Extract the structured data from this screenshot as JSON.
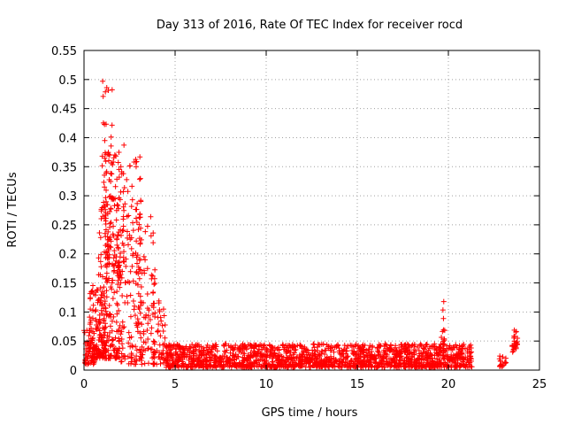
{
  "chart_data": {
    "type": "scatter",
    "title": "Day 313 of 2016, Rate Of TEC Index for receiver rocd",
    "xlabel": "GPS time / hours",
    "ylabel": "ROTI / TECUs",
    "xlim": [
      0,
      25
    ],
    "ylim": [
      0,
      0.55
    ],
    "xticks": [
      "0",
      "5",
      "10",
      "15",
      "20",
      "25"
    ],
    "yticks": [
      "0",
      "0.05",
      "0.1",
      "0.15",
      "0.2",
      "0.25",
      "0.3",
      "0.35",
      "0.4",
      "0.45",
      "0.5",
      "0.55"
    ],
    "xtick_values": [
      0,
      5,
      10,
      15,
      20,
      25
    ],
    "ytick_values": [
      0,
      0.05,
      0.1,
      0.15,
      0.2,
      0.25,
      0.3,
      0.35,
      0.4,
      0.45,
      0.5,
      0.55
    ],
    "grid": true,
    "marker": "+",
    "color": "#ff0000",
    "clusters": [
      {
        "x": [
          0.0,
          0.6
        ],
        "y": [
          0.01,
          0.07
        ],
        "n": 60
      },
      {
        "x": [
          0.3,
          1.2
        ],
        "y": [
          0.02,
          0.15
        ],
        "n": 120
      },
      {
        "x": [
          0.8,
          2.0
        ],
        "y": [
          0.02,
          0.3
        ],
        "n": 200
      },
      {
        "x": [
          1.0,
          1.6
        ],
        "y": [
          0.25,
          0.5
        ],
        "n": 40
      },
      {
        "x": [
          1.2,
          2.3
        ],
        "y": [
          0.15,
          0.39
        ],
        "n": 80
      },
      {
        "x": [
          2.0,
          3.2
        ],
        "y": [
          0.01,
          0.37
        ],
        "n": 130
      },
      {
        "x": [
          2.8,
          3.9
        ],
        "y": [
          0.01,
          0.27
        ],
        "n": 90
      },
      {
        "x": [
          3.8,
          4.5
        ],
        "y": [
          0.01,
          0.12
        ],
        "n": 50
      },
      {
        "x": [
          4.5,
          21.3
        ],
        "y": [
          0.005,
          0.045
        ],
        "n": 1600
      },
      {
        "x": [
          19.6,
          19.8
        ],
        "y": [
          0.03,
          0.14
        ],
        "n": 14
      },
      {
        "x": [
          22.8,
          23.2
        ],
        "y": [
          0.005,
          0.025
        ],
        "n": 20
      },
      {
        "x": [
          23.5,
          23.8
        ],
        "y": [
          0.03,
          0.07
        ],
        "n": 25
      }
    ]
  }
}
